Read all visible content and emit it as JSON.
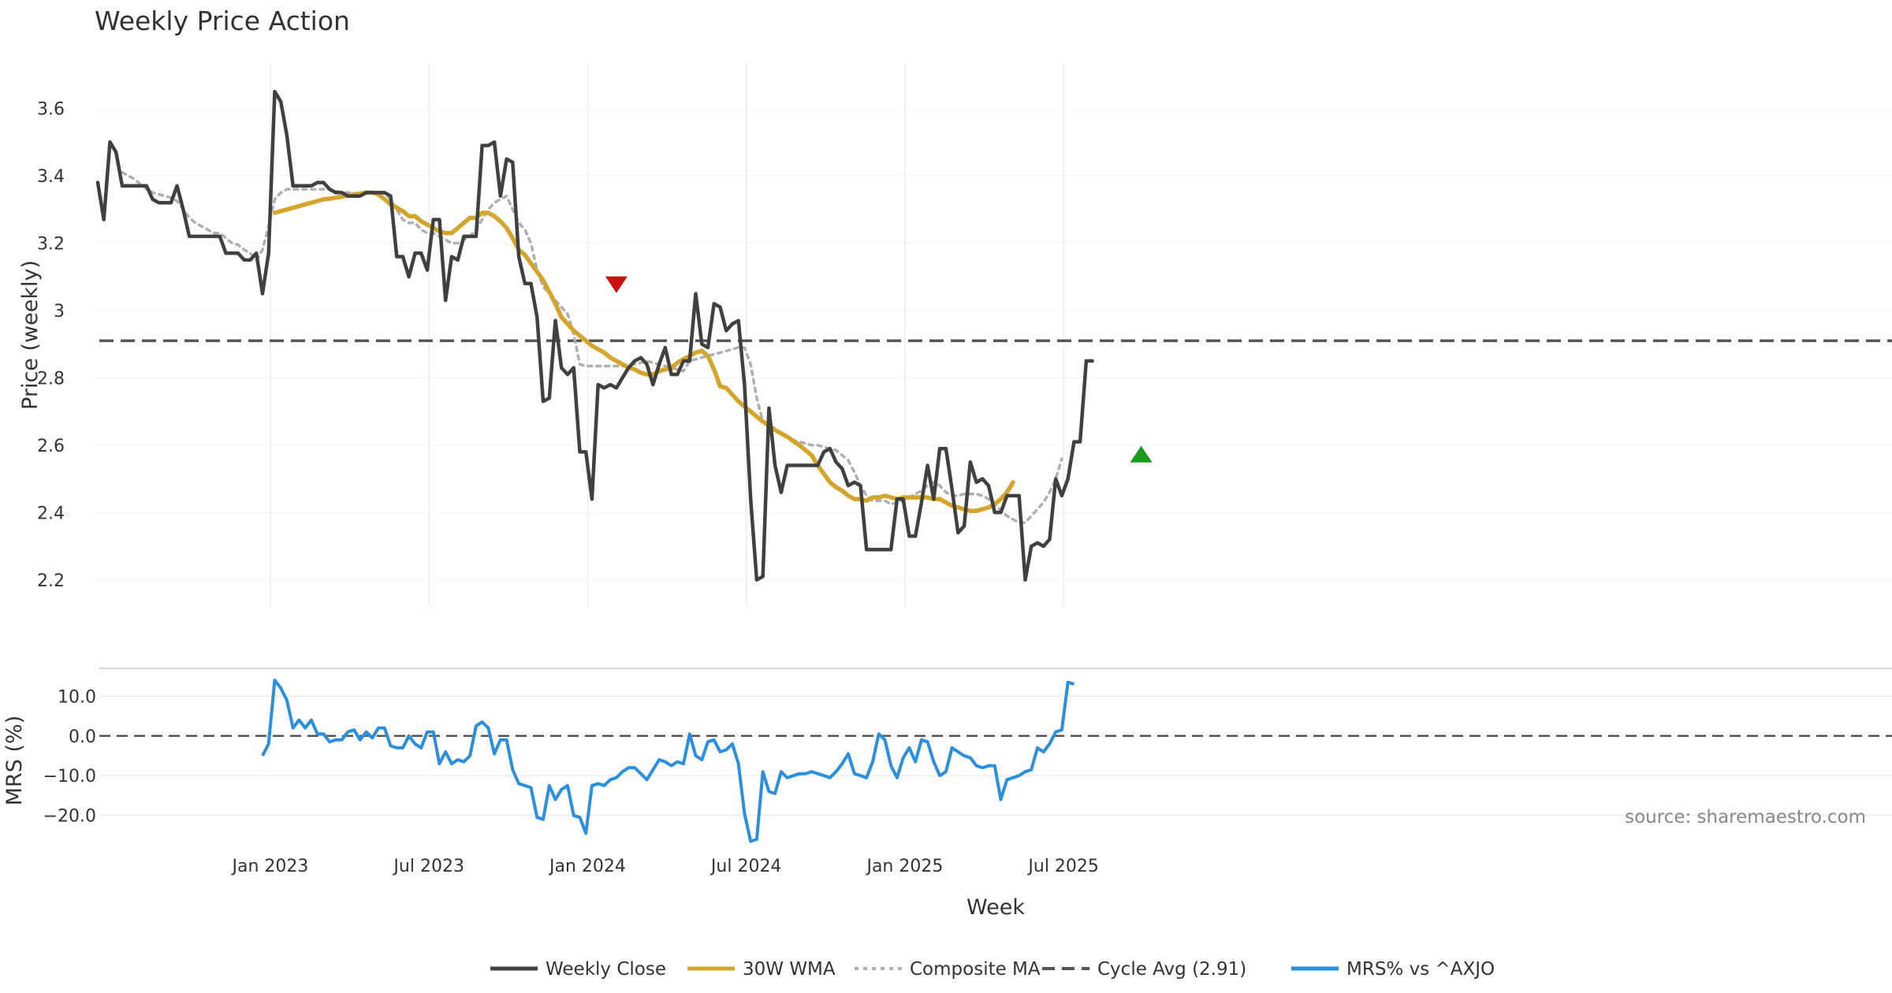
{
  "chart_data": {
    "type": "line",
    "title": "Weekly Price Action",
    "xlabel": "Week",
    "x_ticks": [
      "Jan 2023",
      "Jul 2023",
      "Jan 2024",
      "Jul 2024",
      "Jan 2025",
      "Jul 2025"
    ],
    "source": "source: sharemaestro.com",
    "colors": {
      "close": "#404040",
      "wma": "#d4a52a",
      "composite": "#b0b0b0",
      "cycle": "#555555",
      "mrs": "#2b8fe0",
      "sell": "#cc1111",
      "buy": "#1a9a1a",
      "grid": "#ececec"
    },
    "price_panel": {
      "ylabel": "Price (weekly)",
      "ylim": [
        2.12,
        3.73
      ],
      "y_ticks": [
        3.6,
        3.4,
        3.2,
        3,
        2.8,
        2.6,
        2.4,
        2.2
      ],
      "cycle_avg": 2.91,
      "series": [
        {
          "name": "Weekly Close",
          "start_week": 0,
          "values": [
            3.38,
            3.27,
            3.5,
            3.47,
            3.37,
            3.37,
            3.37,
            3.37,
            3.37,
            3.33,
            3.32,
            3.32,
            3.32,
            3.37,
            3.3,
            3.22,
            3.22,
            3.22,
            3.22,
            3.22,
            3.22,
            3.17,
            3.17,
            3.17,
            3.15,
            3.15,
            3.17,
            3.05,
            3.17,
            3.65,
            3.62,
            3.52,
            3.37,
            3.37,
            3.37,
            3.37,
            3.38,
            3.38,
            3.36,
            3.35,
            3.35,
            3.34,
            3.34,
            3.34,
            3.35,
            3.35,
            3.35,
            3.35,
            3.34,
            3.16,
            3.16,
            3.1,
            3.17,
            3.17,
            3.12,
            3.27,
            3.27,
            3.03,
            3.16,
            3.15,
            3.22,
            3.22,
            3.22,
            3.49,
            3.49,
            3.5,
            3.34,
            3.45,
            3.44,
            3.16,
            3.08,
            3.08,
            2.98,
            2.73,
            2.74,
            2.97,
            2.83,
            2.81,
            2.83,
            2.58,
            2.58,
            2.44,
            2.78,
            2.77,
            2.78,
            2.77,
            2.8,
            2.83,
            2.85,
            2.86,
            2.84,
            2.78,
            2.84,
            2.89,
            2.81,
            2.81,
            2.85,
            2.85,
            3.05,
            2.9,
            2.89,
            3.02,
            3.01,
            2.94,
            2.96,
            2.97,
            2.78,
            2.44,
            2.2,
            2.21,
            2.71,
            2.54,
            2.46,
            2.54,
            2.54,
            2.54,
            2.54,
            2.54,
            2.54,
            2.58,
            2.59,
            2.55,
            2.53,
            2.48,
            2.49,
            2.48,
            2.29,
            2.29,
            2.29,
            2.29,
            2.29,
            2.44,
            2.44,
            2.33,
            2.33,
            2.43,
            2.54,
            2.44,
            2.59,
            2.59,
            2.47,
            2.34,
            2.36,
            2.55,
            2.49,
            2.5,
            2.48,
            2.4,
            2.4,
            2.45,
            2.45,
            2.45,
            2.2,
            2.3,
            2.31,
            2.3,
            2.32,
            2.5,
            2.45,
            2.5,
            2.61,
            2.61,
            2.85,
            2.85
          ]
        },
        {
          "name": "30W WMA",
          "start_week": 29,
          "values": [
            3.29,
            3.295,
            3.3,
            3.305,
            3.31,
            3.315,
            3.32,
            3.325,
            3.33,
            3.332,
            3.335,
            3.338,
            3.341,
            3.344,
            3.347,
            3.35,
            3.35,
            3.345,
            3.33,
            3.315,
            3.305,
            3.295,
            3.28,
            3.28,
            3.265,
            3.255,
            3.245,
            3.235,
            3.23,
            3.23,
            3.245,
            3.26,
            3.275,
            3.275,
            3.29,
            3.29,
            3.28,
            3.265,
            3.245,
            3.215,
            3.18,
            3.165,
            3.14,
            3.115,
            3.09,
            3.055,
            3.02,
            2.98,
            2.96,
            2.94,
            2.925,
            2.91,
            2.895,
            2.885,
            2.875,
            2.86,
            2.85,
            2.84,
            2.83,
            2.825,
            2.815,
            2.81,
            2.81,
            2.82,
            2.825,
            2.83,
            2.845,
            2.855,
            2.865,
            2.875,
            2.88,
            2.865,
            2.825,
            2.775,
            2.77,
            2.75,
            2.73,
            2.715,
            2.7,
            2.685,
            2.67,
            2.658,
            2.645,
            2.635,
            2.625,
            2.612,
            2.6,
            2.585,
            2.57,
            2.54,
            2.515,
            2.49,
            2.475,
            2.465,
            2.45,
            2.44,
            2.44,
            2.435,
            2.445,
            2.445,
            2.45,
            2.445,
            2.44,
            2.445,
            2.445,
            2.445,
            2.445,
            2.445,
            2.44,
            2.44,
            2.43,
            2.42,
            2.415,
            2.41,
            2.405,
            2.405,
            2.41,
            2.415,
            2.425,
            2.44,
            2.46,
            2.49
          ]
        },
        {
          "name": "Composite MA",
          "start_week": 4,
          "values": [
            3.41,
            3.4,
            3.39,
            3.375,
            3.36,
            3.35,
            3.345,
            3.34,
            3.335,
            3.325,
            3.3,
            3.275,
            3.26,
            3.25,
            3.24,
            3.23,
            3.23,
            3.215,
            3.2,
            3.195,
            3.18,
            3.17,
            3.15,
            3.18,
            3.25,
            3.33,
            3.35,
            3.36,
            3.36,
            3.36,
            3.36,
            3.36,
            3.36,
            3.36,
            3.36,
            3.355,
            3.35,
            3.35,
            3.348,
            3.348,
            3.348,
            3.348,
            3.348,
            3.348,
            3.33,
            3.3,
            3.27,
            3.26,
            3.26,
            3.24,
            3.23,
            3.23,
            3.22,
            3.21,
            3.2,
            3.2,
            3.21,
            3.22,
            3.24,
            3.27,
            3.3,
            3.32,
            3.33,
            3.34,
            3.3,
            3.26,
            3.24,
            3.2,
            3.12,
            3.07,
            3.05,
            3.03,
            3.01,
            2.99,
            2.93,
            2.84,
            2.835,
            2.835,
            2.835,
            2.835,
            2.835,
            2.835,
            2.835,
            2.84,
            2.84,
            2.845,
            2.85,
            2.845,
            2.84,
            2.835,
            2.83,
            2.825,
            2.82,
            2.85,
            2.855,
            2.86,
            2.865,
            2.87,
            2.875,
            2.88,
            2.885,
            2.89,
            2.89,
            2.84,
            2.74,
            2.67,
            2.66,
            2.65,
            2.635,
            2.625,
            2.615,
            2.61,
            2.605,
            2.6,
            2.6,
            2.595,
            2.59,
            2.585,
            2.57,
            2.555,
            2.52,
            2.48,
            2.45,
            2.435,
            2.435,
            2.435,
            2.425,
            2.43,
            2.435,
            2.445,
            2.455,
            2.465,
            2.48,
            2.49,
            2.48,
            2.46,
            2.45,
            2.45,
            2.455,
            2.455,
            2.455,
            2.45,
            2.44,
            2.425,
            2.405,
            2.39,
            2.38,
            2.37,
            2.37,
            2.39,
            2.41,
            2.43,
            2.46,
            2.5,
            2.56
          ]
        }
      ],
      "markers": [
        {
          "type": "sell",
          "week": 85,
          "value": 3.08
        },
        {
          "type": "buy",
          "week": 171,
          "value": 2.57
        }
      ]
    },
    "mrs_panel": {
      "ylabel": "MRS (%)",
      "ylim": [
        -27,
        17
      ],
      "y_ticks": [
        "10.0",
        "0.0",
        "−10.0",
        "−20.0"
      ],
      "y_tick_values": [
        10,
        0,
        -10,
        -20
      ],
      "series": [
        {
          "name": "MRS% vs ^AXJO",
          "start_week": 27,
          "values": [
            -5,
            -2,
            14,
            12,
            9,
            2,
            4,
            2,
            4,
            0.5,
            0.5,
            -1.5,
            -1,
            -1,
            1,
            1.5,
            -1,
            1,
            -0.5,
            2,
            2,
            -2.5,
            -3,
            -3,
            0,
            -2,
            -3,
            1,
            1,
            -7,
            -4,
            -7,
            -6,
            -6.5,
            -5,
            2.5,
            3.5,
            2,
            -4.5,
            -1,
            -1,
            -8.5,
            -12,
            -12.5,
            -13,
            -20.5,
            -21,
            -12.5,
            -16,
            -13.5,
            -12.5,
            -20,
            -20.5,
            -24.5,
            -12.5,
            -12,
            -12.5,
            -11,
            -10.5,
            -9,
            -8,
            -8,
            -9.5,
            -11,
            -8.5,
            -6,
            -6.5,
            -7.5,
            -6.5,
            -7,
            0.5,
            -5,
            -6,
            -1.5,
            -1,
            -4,
            -3.5,
            -2,
            -7,
            -19.5,
            -26.5,
            -26,
            -9,
            -14,
            -14.5,
            -9,
            -10.5,
            -10,
            -9.5,
            -9.5,
            -9,
            -9.5,
            -10,
            -10.5,
            -9,
            -7,
            -4.5,
            -9.5,
            -10,
            -10.5,
            -6.5,
            0.5,
            -1,
            -7.5,
            -10.5,
            -5.5,
            -3,
            -6.5,
            -1,
            -1.5,
            -6.5,
            -10,
            -9,
            -3,
            -4,
            -5,
            -5.5,
            -7.5,
            -8,
            -7.5,
            -7.5,
            -16,
            -11,
            -10.5,
            -10,
            -9,
            -8.5,
            -3,
            -4,
            -2,
            1,
            1.5,
            13.5,
            13
          ]
        }
      ]
    },
    "legend": [
      {
        "key": "close",
        "label": "Weekly Close",
        "style": "solid"
      },
      {
        "key": "wma",
        "label": "30W WMA",
        "style": "solid"
      },
      {
        "key": "composite",
        "label": "Composite MA",
        "style": "dotted"
      },
      {
        "key": "cycle",
        "label": "Cycle Avg (2.91)",
        "style": "dashed"
      },
      {
        "key": "mrs",
        "label": "MRS% vs ^AXJO",
        "style": "solid"
      }
    ]
  }
}
